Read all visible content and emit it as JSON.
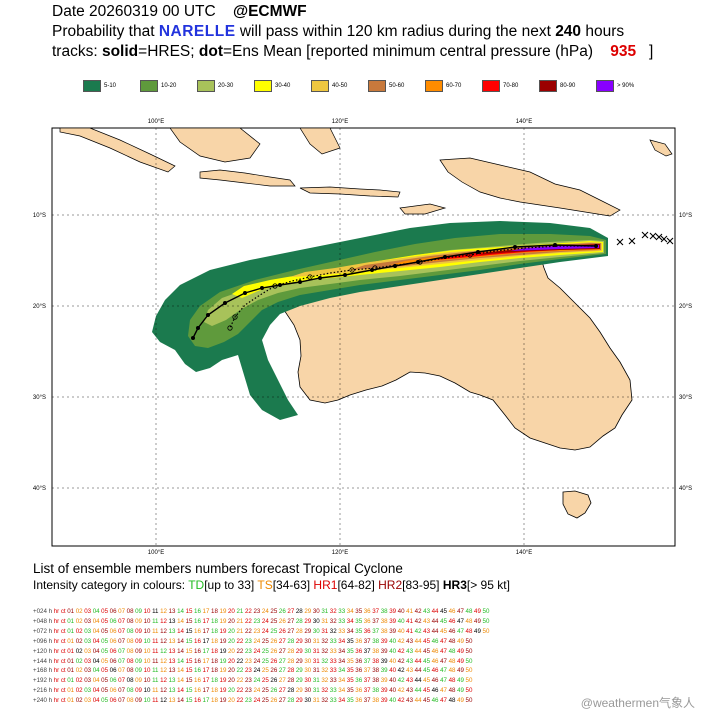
{
  "header": {
    "line1_date": "Date 20260319 00 UTC",
    "line1_org": "@ECMWF",
    "line2_prefix": "Probability that",
    "line2_storm": "NARELLE",
    "line2_mid": "will pass within 120 km radius during the next",
    "line2_hours": "240",
    "line2_suffix": "hours",
    "line3_prefix": "tracks:",
    "line3_solid": "solid",
    "line3_mid1": "=HRES;",
    "line3_dot": "dot",
    "line3_mid2": "=Ens Mean [reported minimum central pressure (hPa)",
    "line3_pressure": "935",
    "line3_end": "]"
  },
  "legend": [
    {
      "label": "5-10",
      "color": "#1b7a4e"
    },
    {
      "label": "10-20",
      "color": "#5f9a3c"
    },
    {
      "label": "20-30",
      "color": "#a8c25a"
    },
    {
      "label": "30-40",
      "color": "#ffff00"
    },
    {
      "label": "40-50",
      "color": "#eec640"
    },
    {
      "label": "50-60",
      "color": "#c8793c"
    },
    {
      "label": "60-70",
      "color": "#ff8c00"
    },
    {
      "label": "70-80",
      "color": "#ff0000"
    },
    {
      "label": "80-90",
      "color": "#9b0000"
    },
    {
      "label": "> 90%",
      "color": "#8800ff"
    }
  ],
  "map": {
    "lon_top_labels": [
      "100°E",
      "120°E",
      "140°E"
    ],
    "lon_bottom_labels": [
      "100°E",
      "120°E",
      "140°E"
    ],
    "lat_left_labels": [
      "10°S",
      "20°S",
      "30°S",
      "40°S"
    ],
    "lat_right_labels": [
      "10°S",
      "20°S",
      "30°S",
      "40°S"
    ],
    "land_color": "#f8d5a8",
    "ocean_color": "#ffffff"
  },
  "bottom": {
    "title": "List of ensemble members numbers forecast Tropical Cyclone",
    "sub_prefix": "Intensity category in colours:",
    "td": "TD",
    "td_range": "[up to 33]",
    "ts": "TS",
    "ts_range": "[34-63]",
    "hr1": "HR1",
    "hr1_range": "[64-82]",
    "hr2": "HR2",
    "hr2_range": "[83-95]",
    "hr3": "HR3",
    "hr3_range": "[> 95 kt]"
  },
  "ensemble_rows": [
    {
      "lead": "+024 h",
      "members": "hr ct 01 02 03 04 05 06 07 08 09 10 11 12 13 14 15 16 17 18 19 20 21 22 23 24 25 26 27 28 29 30 31 32 33 34 35 36 37 38 39 40 41 42 43 44 45 46 47 48 49 50"
    },
    {
      "lead": "+048 h",
      "members": "hr ct 01 02 03 04 05 06 07 08 09 10 11 12 13 14 15 16 17 18 19 20 21 22 23 24 25 26 27 28 29 30 31 32 33 34 35 36 37 38 39 40 41 42 43 44 45 46 47 48 49 50"
    },
    {
      "lead": "+072 h",
      "members": "hr ct 01 02 03 04 05 06 07 08 09 10 11 12 13 14 15 16 17 18 19 20 21 22 23 24 25 26 27 28 29 30 31 32 33 34 35 36 37 38 39 40 41 42 43 44 45 46 47 48 49 50"
    },
    {
      "lead": "+096 h",
      "members": "hr ct 01 02 03 04 05 06 07 08 09 10 11 12 13 14 15 16 17 18 19 20 22 23 24 25 26 27 28 29 30 31 32 33 34 35 36 37 38 39 40 42 43 44 45 46 47 48 49 50"
    },
    {
      "lead": "+120 h",
      "members": "hr ct 01 02 03 04 05 06 07 08 09 10 11 12 13 14 15 16 17 18 19 20 22 23 24 25 26 27 28 29 30 31 32 33 34 35 36 37 38 39 40 42 43 44 45 46 47 48 49 50"
    },
    {
      "lead": "+144 h",
      "members": "hr ct 01 02 03 04 05 06 07 08 09 10 11 12 13 14 15 16 17 18 19 20 22 23 24 25 26 27 28 29 30 31 32 33 34 35 36 37 38 39 40 42 43 44 45 46 47 48 49 50"
    },
    {
      "lead": "+168 h",
      "members": "hr ct 01 02 03 04 05 06 07 08 09 10 11 12 13 14 15 16 17 18 19 20 22 23 24 25 26 27 28 29 30 31 32 33 34 35 36 37 38 39 40 42 43 44 45 46 47 48 49 50"
    },
    {
      "lead": "+192 h",
      "members": "hr ct 01 02 03 04 05 06 07 08 09 10 11 12 13 14 15 16 17 18 19 20 22 23 24 25 26 27 28 29 30 31 32 33 34 35 36 37 38 39 40 42 43 44 45 46 47 48 49 50"
    },
    {
      "lead": "+216 h",
      "members": "hr ct 01 02 03 04 05 06 07 08 09 10 11 12 13 14 15 16 17 18 19 20 22 23 24 25 26 27 28 29 30 31 32 33 34 35 36 37 38 39 40 42 43 44 45 46 47 48 49 50"
    },
    {
      "lead": "+240 h",
      "members": "hr ct 01 02 03 04 05 06 07 08 09 10 11 12 13 14 15 16 17 18 19 20 22 23 24 25 26 27 28 29 30 31 32 33 34 35 36 37 38 39 40 42 43 44 45 46 47 48 49 50"
    }
  ],
  "member_palette": [
    "#22bb22",
    "#ee8800",
    "#dd0000",
    "#990000",
    "#000000"
  ],
  "watermark": "@weathermen气象人"
}
